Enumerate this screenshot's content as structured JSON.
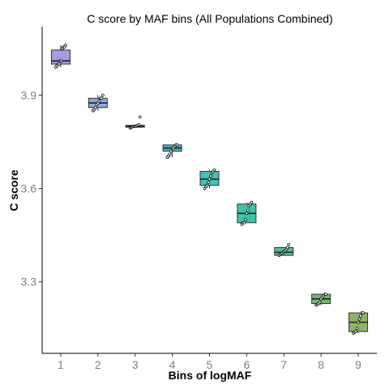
{
  "chart_data": {
    "type": "boxplot",
    "title": "C score by MAF bins (All Populations Combined)",
    "xlabel": "Bins of logMAF",
    "ylabel": "C score",
    "categories": [
      "1",
      "2",
      "3",
      "4",
      "5",
      "6",
      "7",
      "8",
      "9"
    ],
    "y_ticks": [
      3.3,
      3.6,
      3.9
    ],
    "y_tick_labels": [
      "3.3",
      "3.6",
      "3.9"
    ],
    "ylim": [
      3.07,
      4.12
    ],
    "grid": false,
    "legend": "none",
    "boxes": [
      {
        "category": "1",
        "min": 3.99,
        "q1": 4.0,
        "median": 4.01,
        "q3": 4.045,
        "max": 4.06,
        "color": "#a99be0",
        "points": [
          3.99,
          3.995,
          4.0,
          4.0,
          4.01,
          4.01,
          4.05,
          4.055,
          4.055,
          4.06
        ]
      },
      {
        "category": "2",
        "min": 3.85,
        "q1": 3.86,
        "median": 3.875,
        "q3": 3.89,
        "max": 3.9,
        "color": "#8aa8e2",
        "points": [
          3.85,
          3.855,
          3.86,
          3.87,
          3.875,
          3.88,
          3.89,
          3.89,
          3.9
        ]
      },
      {
        "category": "3",
        "min": 3.795,
        "q1": 3.797,
        "median": 3.8,
        "q3": 3.803,
        "max": 3.805,
        "color": "#5ab6d4",
        "points": [
          3.795,
          3.797,
          3.798,
          3.8,
          3.8,
          3.8,
          3.8,
          3.802,
          3.803,
          3.805,
          3.83
        ]
      },
      {
        "category": "4",
        "min": 3.7,
        "q1": 3.72,
        "median": 3.73,
        "q3": 3.74,
        "max": 3.74,
        "color": "#3db8c8",
        "points": [
          3.7,
          3.705,
          3.71,
          3.72,
          3.73,
          3.73,
          3.735,
          3.74,
          3.74
        ]
      },
      {
        "category": "5",
        "min": 3.6,
        "q1": 3.61,
        "median": 3.63,
        "q3": 3.655,
        "max": 3.66,
        "color": "#3ec3b8",
        "points": [
          3.6,
          3.605,
          3.61,
          3.62,
          3.63,
          3.64,
          3.65,
          3.655,
          3.66
        ]
      },
      {
        "category": "6",
        "min": 3.49,
        "q1": 3.49,
        "median": 3.52,
        "q3": 3.55,
        "max": 3.555,
        "color": "#3ec3a8",
        "points": [
          3.485,
          3.49,
          3.49,
          3.5,
          3.52,
          3.53,
          3.545,
          3.55,
          3.555
        ]
      },
      {
        "category": "7",
        "min": 3.385,
        "q1": 3.385,
        "median": 3.395,
        "q3": 3.41,
        "max": 3.41,
        "color": "#52be8e",
        "points": [
          3.385,
          3.388,
          3.39,
          3.392,
          3.395,
          3.398,
          3.4,
          3.405,
          3.41,
          3.42
        ]
      },
      {
        "category": "8",
        "min": 3.225,
        "q1": 3.23,
        "median": 3.245,
        "q3": 3.26,
        "max": 3.26,
        "color": "#6dba79",
        "points": [
          3.225,
          3.228,
          3.23,
          3.235,
          3.245,
          3.25,
          3.255,
          3.26,
          3.26
        ]
      },
      {
        "category": "9",
        "min": 3.135,
        "q1": 3.14,
        "median": 3.17,
        "q3": 3.2,
        "max": 3.2,
        "color": "#8db466",
        "points": [
          3.135,
          3.138,
          3.14,
          3.15,
          3.17,
          3.18,
          3.19,
          3.2,
          3.2
        ]
      }
    ]
  }
}
